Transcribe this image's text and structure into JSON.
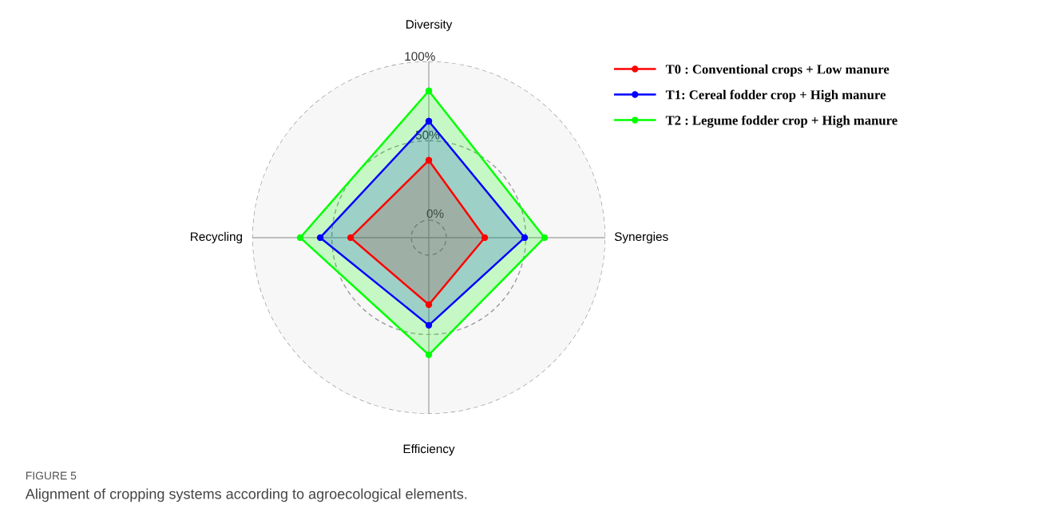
{
  "chart_data": {
    "type": "radar",
    "categories": [
      "Diversity",
      "Synergies",
      "Efficiency",
      "Recycling"
    ],
    "series": [
      {
        "name": "T0 : Conventional crops + Low manure",
        "color": "#ff0000",
        "values": [
          37.7,
          24.2,
          31.2,
          38.2
        ]
      },
      {
        "name": "T1: Cereal fodder crop + High manure",
        "color": "#0000ff",
        "values": [
          62.3,
          49.3,
          44.2,
          57.3
        ]
      },
      {
        "name": "T2 : Legume fodder crop + High manure",
        "color": "#00ff00",
        "values": [
          81.4,
          61.8,
          62.8,
          69.9
        ]
      }
    ],
    "ylim": [
      -11,
      100
    ],
    "yticks": [
      {
        "value": 0,
        "label": "0%"
      },
      {
        "value": 50,
        "label": "50%"
      },
      {
        "value": 100,
        "label": "100%"
      }
    ],
    "grid": true,
    "legend": "top right",
    "marker": "circle",
    "line_style": "solid",
    "annotations": [
      "FIGURE 5",
      "Alignment of cropping systems according to agroecological elements."
    ]
  }
}
